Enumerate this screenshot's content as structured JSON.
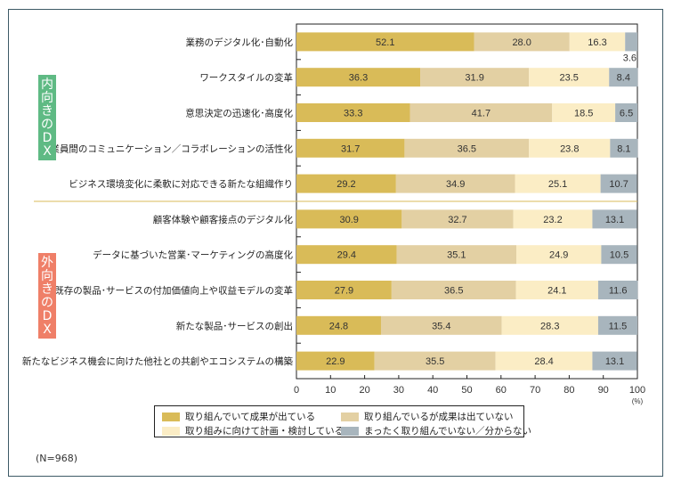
{
  "chart_data": {
    "type": "bar",
    "orientation": "horizontal",
    "stacked": true,
    "title": "",
    "xlabel": "",
    "ylabel": "",
    "x_unit_label": "(%)",
    "xlim": [
      0,
      100
    ],
    "x_ticks": [
      "0",
      "10",
      "20",
      "30",
      "40",
      "50",
      "60",
      "70",
      "80",
      "90",
      "100"
    ],
    "grid": false,
    "legend_position": "bottom",
    "groups": [
      {
        "label": "内向きのDX",
        "chars": [
          "内",
          "向",
          "き",
          "の",
          "D",
          "X"
        ],
        "color": "#5fba84",
        "rows": [
          0,
          1,
          2,
          3,
          4
        ]
      },
      {
        "label": "外向きのDX",
        "chars": [
          "外",
          "向",
          "き",
          "の",
          "D",
          "X"
        ],
        "color": "#ef7f68",
        "rows": [
          5,
          6,
          7,
          8,
          9
        ]
      }
    ],
    "categories": [
      "業務のデジタル化･自動化",
      "ワークスタイルの変革",
      "意思決定の迅速化･高度化",
      "従業員間のコミュニケーション／コラボレーションの活性化",
      "ビジネス環境変化に柔軟に対応できる新たな組織作り",
      "顧客体験や顧客接点のデジタル化",
      "データに基づいた営業･マーケティングの高度化",
      "既存の製品･サービスの付加価値向上や収益モデルの変革",
      "新たな製品･サービスの創出",
      "新たなビジネス機会に向けた他社との共創やエコシステムの構築"
    ],
    "series": [
      {
        "name": "取り組んでいて成果が出ている",
        "color": "#d9bb58",
        "values": [
          52.1,
          36.3,
          33.3,
          31.7,
          29.2,
          30.9,
          29.4,
          27.9,
          24.8,
          22.9
        ]
      },
      {
        "name": "取り組んでいるが成果は出ていない",
        "color": "#e3d0a3",
        "values": [
          28.0,
          31.9,
          41.7,
          36.5,
          34.9,
          32.7,
          35.1,
          36.5,
          35.4,
          35.5
        ]
      },
      {
        "name": "取り組みに向けて計画・検討している",
        "color": "#fbedc5",
        "values": [
          16.3,
          23.5,
          18.5,
          23.8,
          25.1,
          23.2,
          24.9,
          24.1,
          28.3,
          28.4
        ]
      },
      {
        "name": "まったく取り組んでいない／分からない",
        "color": "#a8b5bd",
        "values": [
          3.6,
          8.4,
          6.5,
          8.1,
          10.7,
          13.1,
          10.5,
          11.6,
          11.5,
          13.1
        ]
      }
    ],
    "note": "(N=968)"
  }
}
